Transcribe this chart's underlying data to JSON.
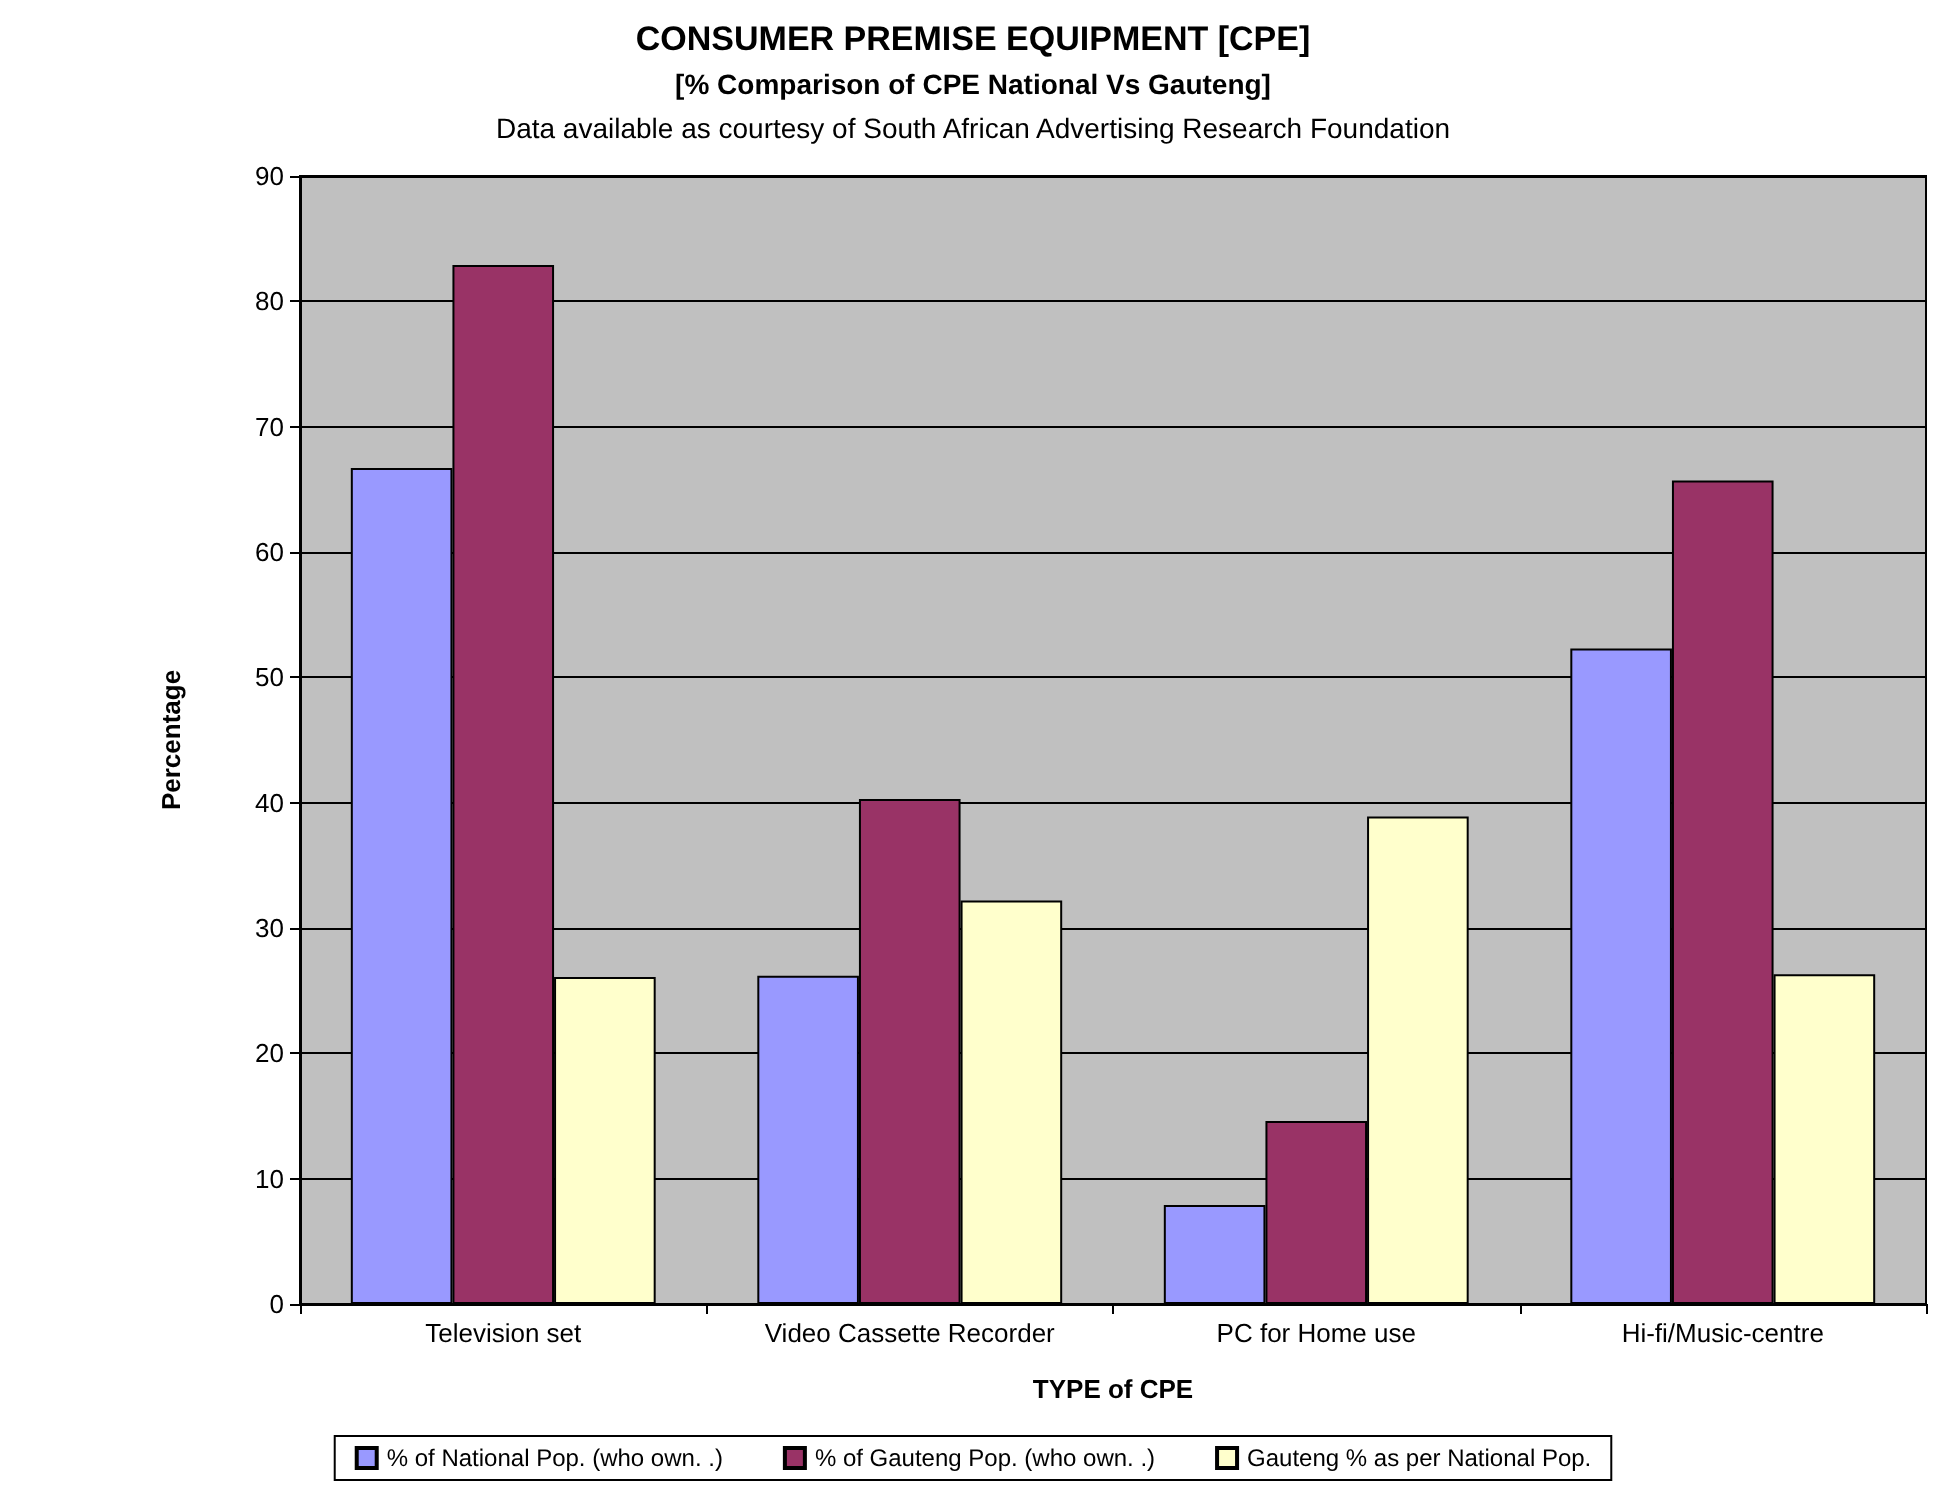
{
  "chart_data": {
    "type": "bar",
    "title": "CONSUMER PREMISE EQUIPMENT [CPE]",
    "subtitle": "[% Comparison of CPE National Vs Gauteng]",
    "annotations": [
      "Data available as courtesy of South African Advertising Research Foundation"
    ],
    "xlabel": "TYPE of CPE",
    "ylabel": "Percentage",
    "categories": [
      "Television set",
      "Video Cassette Recorder",
      "PC for Home use",
      "Hi-fi/Music-centre"
    ],
    "series": [
      {
        "name": "% of National Pop. (who own. .)",
        "color": "#9999ff",
        "values": [
          66.7,
          26.2,
          7.9,
          52.3
        ]
      },
      {
        "name": "% of Gauteng Pop. (who own. .)",
        "color": "#993366",
        "values": [
          82.9,
          40.3,
          14.6,
          65.7
        ]
      },
      {
        "name": "Gauteng % as per National Pop.",
        "color": "#ffffcc",
        "values": [
          26.1,
          32.2,
          38.9,
          26.3
        ]
      }
    ],
    "ylim": [
      0,
      90
    ],
    "yticks": [
      0,
      10,
      20,
      30,
      40,
      50,
      60,
      70,
      80,
      90
    ],
    "grid": "y",
    "legend": "bottom"
  }
}
